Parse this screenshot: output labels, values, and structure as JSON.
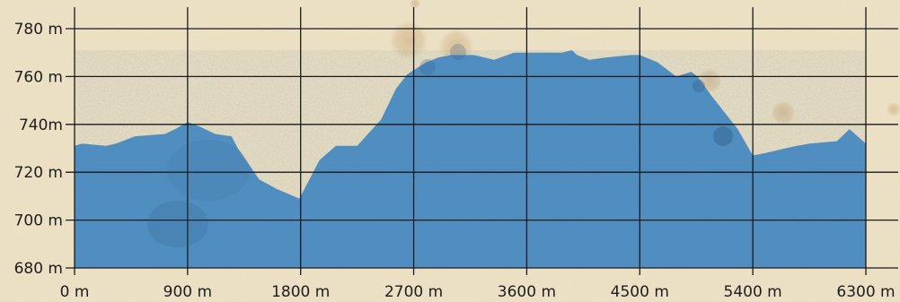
{
  "chart_data": {
    "type": "area",
    "title": "",
    "xlabel": "",
    "ylabel": "",
    "x_unit": "m",
    "y_unit": "m",
    "xlim": [
      0,
      6300
    ],
    "ylim": [
      680,
      780
    ],
    "grid": true,
    "x_ticks": [
      0,
      900,
      1800,
      2700,
      3600,
      4500,
      5400,
      6300
    ],
    "x_tick_labels": [
      "0 m",
      "900 m",
      "1800 m",
      "2700 m",
      "3600 m",
      "4500 m",
      "5400 m",
      "6300 m"
    ],
    "y_ticks": [
      680,
      700,
      720,
      740,
      760,
      780
    ],
    "y_tick_labels": [
      "680 m",
      "700 m",
      "720 m",
      "740m",
      "760 m",
      "780 m"
    ],
    "colors": {
      "fill": "#4f8fc4",
      "grid": "#1a1a1a",
      "background": "#efe4c8"
    },
    "series": [
      {
        "x": [
          0,
          60,
          250,
          330,
          480,
          720,
          800,
          900,
          1000,
          1120,
          1250,
          1300,
          1470,
          1610,
          1790,
          1950,
          2080,
          2250,
          2440,
          2560,
          2650,
          2800,
          2900,
          3000,
          3180,
          3340,
          3500,
          3660,
          3880,
          3960,
          4000,
          4100,
          4240,
          4430,
          4500,
          4640,
          4790,
          4910,
          4960,
          5070,
          5280,
          5400,
          5500,
          5660,
          5750,
          5850,
          6070,
          6170,
          6300
        ],
        "y": [
          731,
          732,
          731,
          732,
          735,
          736,
          738,
          741,
          739,
          736,
          735,
          730,
          717,
          713,
          709,
          725,
          731,
          731,
          742,
          755,
          761,
          766,
          768,
          769,
          769,
          767,
          770,
          770,
          770,
          771,
          769,
          767,
          768,
          769,
          769,
          766,
          760,
          762,
          760,
          752,
          738,
          727,
          728,
          730,
          731,
          732,
          733,
          738,
          732
        ]
      }
    ]
  }
}
